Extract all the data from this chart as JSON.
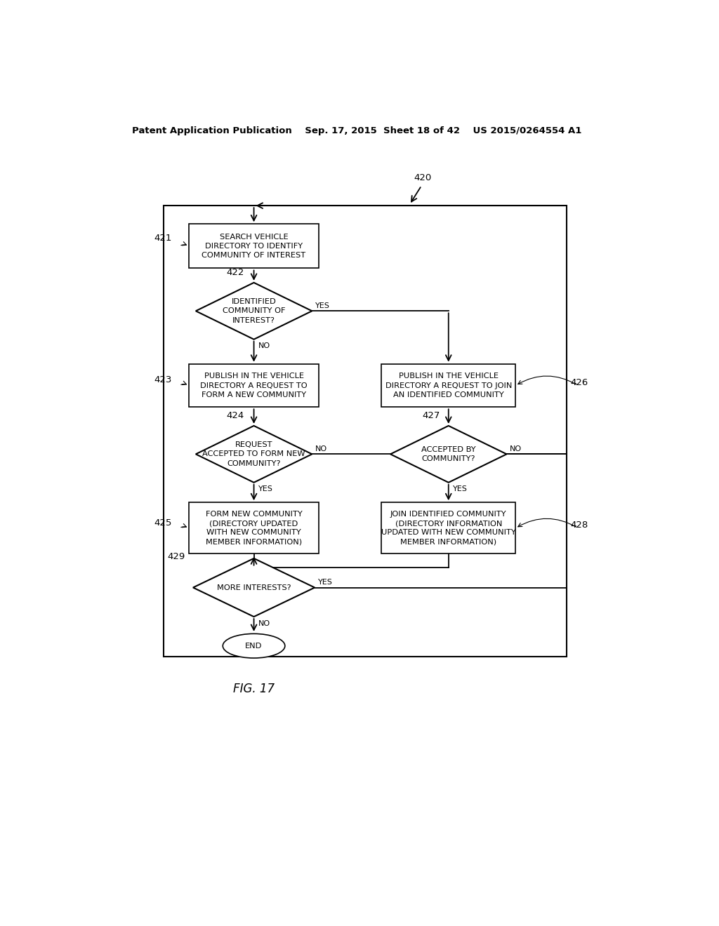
{
  "bg_color": "#ffffff",
  "header": "Patent Application Publication    Sep. 17, 2015  Sheet 18 of 42    US 2015/0264554 A1",
  "fig_label": "FIG. 17",
  "n421": "SEARCH VEHICLE\nDIRECTORY TO IDENTIFY\nCOMMUNITY OF INTEREST",
  "n422": "IDENTIFIED\nCOMMUNITY OF\nINTEREST?",
  "n423": "PUBLISH IN THE VEHICLE\nDIRECTORY A REQUEST TO\nFORM A NEW COMMUNITY",
  "n424": "REQUEST\nACCEPTED TO FORM NEW\nCOMMUNITY?",
  "n425": "FORM NEW COMMUNITY\n(DIRECTORY UPDATED\nWITH NEW COMMUNITY\nMEMBER INFORMATION)",
  "n426": "PUBLISH IN THE VEHICLE\nDIRECTORY A REQUEST TO JOIN\nAN IDENTIFIED COMMUNITY",
  "n427": "ACCEPTED BY\nCOMMUNITY?",
  "n428": "JOIN IDENTIFIED COMMUNITY\n(DIRECTORY INFORMATION\nUPDATED WITH NEW COMMUNITY\nMEMBER INFORMATION)",
  "n429": "MORE INTERESTS?",
  "nend": "END",
  "lbl420": "420",
  "lbl421": "421",
  "lbl422": "422",
  "lbl423": "423",
  "lbl424": "424",
  "lbl425": "425",
  "lbl426": "426",
  "lbl427": "427",
  "lbl428": "428",
  "lbl429": "429"
}
